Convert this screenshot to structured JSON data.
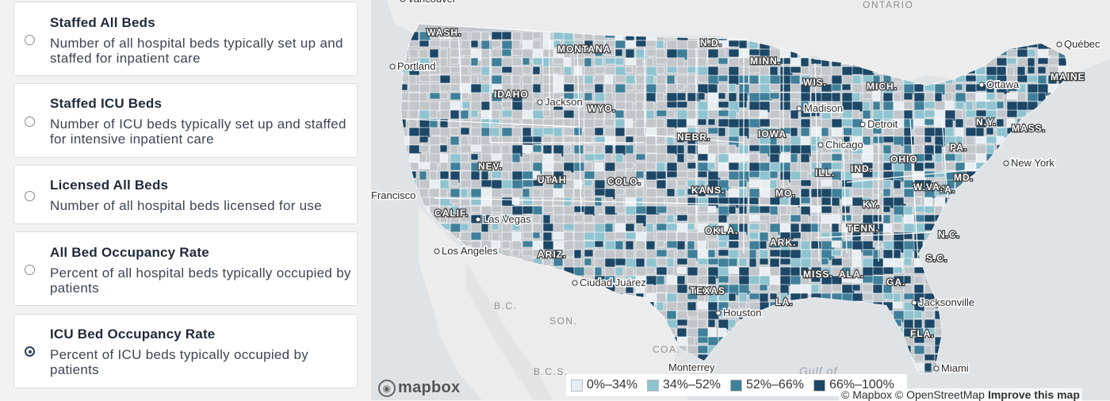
{
  "options": [
    {
      "title": "Staffed All Beds",
      "desc": "Number of all hospital beds typically set up and staffed for inpatient care",
      "checked": false
    },
    {
      "title": "Staffed ICU Beds",
      "desc": "Number of ICU beds typically set up and staffed for intensive inpatient care",
      "checked": false
    },
    {
      "title": "Licensed All Beds",
      "desc": "Number of all hospital beds licensed for use",
      "checked": false
    },
    {
      "title": "All Bed Occupancy Rate",
      "desc": "Percent of all hospital beds typically occupied by patients",
      "checked": false
    },
    {
      "title": "ICU Bed Occupancy Rate",
      "desc": "Percent of ICU beds typically occupied by patients",
      "checked": true
    }
  ],
  "map": {
    "legend": [
      {
        "label": "0%–34%",
        "color": "#e8eef1"
      },
      {
        "label": "34%–52%",
        "color": "#8fc3cf"
      },
      {
        "label": "52%–66%",
        "color": "#3f7f99"
      },
      {
        "label": "66%–100%",
        "color": "#1c4766"
      }
    ],
    "no_data_color": "#c2c6ca",
    "states": [
      "WASH.",
      "MONTANA",
      "IDAHO",
      "WYO.",
      "NEV.",
      "UTAH",
      "COLO.",
      "CALIF.",
      "ARIZ.",
      "N.D.",
      "MINN.",
      "NEBR.",
      "KANS.",
      "OKLA.",
      "TEXAS",
      "IOWA",
      "MO.",
      "ARK.",
      "LA.",
      "MISS.",
      "ALA.",
      "TENN.",
      "KY.",
      "ILL.",
      "IND.",
      "OHIO",
      "MICH.",
      "WIS.",
      "GA.",
      "FLA.",
      "S.C.",
      "N.C.",
      "VA.",
      "W.VA.",
      "PA.",
      "N.Y.",
      "MASS.",
      "MAINE",
      "MD."
    ],
    "cities": [
      "Vancouver",
      "Portland",
      "Jackson",
      "Francisco",
      "Las Vegas",
      "Los Angeles",
      "Ciudad Juárez",
      "Chicago",
      "Madison",
      "Detroit",
      "Ottawa",
      "Québec",
      "New York",
      "Houston",
      "Jacksonville",
      "Miami",
      "Monterrey"
    ],
    "regions": [
      "ONTARIO",
      "B.C.",
      "SON.",
      "COA.",
      "B.C.S."
    ],
    "water": [
      "Gulf of"
    ],
    "logo": "mapbox",
    "attribution": "© Mapbox © OpenStreetMap",
    "improve": "Improve this map"
  }
}
